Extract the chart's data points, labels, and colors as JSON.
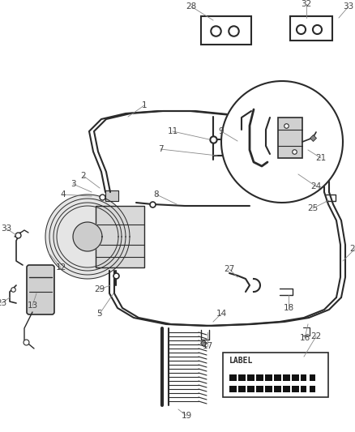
{
  "bg_color": "#ffffff",
  "line_color": "#2a2a2a",
  "label_color": "#444444",
  "lw_main": 1.8,
  "lw_thin": 1.0,
  "lw_pipe": 2.2,
  "figsize": [
    4.38,
    5.33
  ],
  "dpi": 100
}
